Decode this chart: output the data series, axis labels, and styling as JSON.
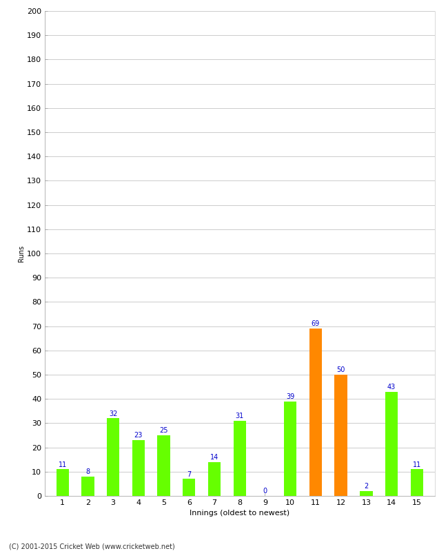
{
  "xlabel": "Innings (oldest to newest)",
  "ylabel": "Runs",
  "categories": [
    1,
    2,
    3,
    4,
    5,
    6,
    7,
    8,
    9,
    10,
    11,
    12,
    13,
    14,
    15
  ],
  "values": [
    11,
    8,
    32,
    23,
    25,
    7,
    14,
    31,
    0,
    39,
    69,
    50,
    2,
    43,
    11
  ],
  "bar_colors": [
    "#66ff00",
    "#66ff00",
    "#66ff00",
    "#66ff00",
    "#66ff00",
    "#66ff00",
    "#66ff00",
    "#66ff00",
    "#66ff00",
    "#66ff00",
    "#ff8800",
    "#ff8800",
    "#66ff00",
    "#66ff00",
    "#66ff00"
  ],
  "label_color": "#0000cc",
  "ylim": [
    0,
    200
  ],
  "yticks": [
    0,
    10,
    20,
    30,
    40,
    50,
    60,
    70,
    80,
    90,
    100,
    110,
    120,
    130,
    140,
    150,
    160,
    170,
    180,
    190,
    200
  ],
  "background_color": "#ffffff",
  "grid_color": "#cccccc",
  "footer": "(C) 2001-2015 Cricket Web (www.cricketweb.net)",
  "label_fontsize": 7,
  "axis_fontsize": 8,
  "ylabel_fontsize": 7,
  "bar_width": 0.5
}
